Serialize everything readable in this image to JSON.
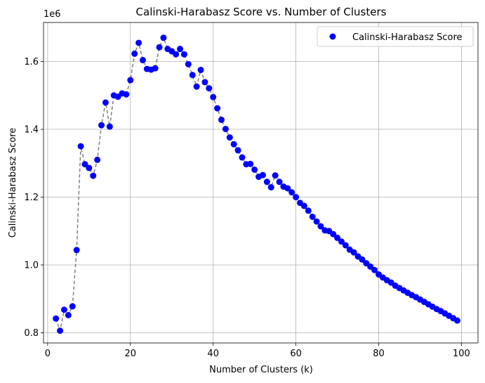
{
  "chart_data": {
    "type": "scatter",
    "title": "Calinski-Harabasz Score vs. Number of Clusters",
    "xlabel": "Number of Clusters (k)",
    "ylabel": "Calinski-Harabasz Score",
    "y_offset_label": "1e6",
    "xlim": [
      -1,
      104
    ],
    "ylim": [
      0.77,
      1.715
    ],
    "xticks": [
      0,
      20,
      40,
      60,
      80,
      100
    ],
    "yticks": [
      0.8,
      1.0,
      1.2,
      1.4,
      1.6
    ],
    "ytick_labels": [
      "0.8",
      "1.0",
      "1.2",
      "1.4",
      "1.6"
    ],
    "grid": true,
    "legend": {
      "position": "top-right",
      "entries": [
        "Calinski-Harabasz Score"
      ]
    },
    "colors": {
      "points": "#0000ff",
      "line": "#808080"
    },
    "series": [
      {
        "name": "Calinski-Harabasz Score",
        "x": [
          2,
          3,
          4,
          5,
          6,
          7,
          8,
          9,
          10,
          11,
          12,
          13,
          14,
          15,
          16,
          17,
          18,
          19,
          20,
          21,
          22,
          23,
          24,
          25,
          26,
          27,
          28,
          29,
          30,
          31,
          32,
          33,
          34,
          35,
          36,
          37,
          38,
          39,
          40,
          41,
          42,
          43,
          44,
          45,
          46,
          47,
          48,
          49,
          50,
          51,
          52,
          53,
          54,
          55,
          56,
          57,
          58,
          59,
          60,
          61,
          62,
          63,
          64,
          65,
          66,
          67,
          68,
          69,
          70,
          71,
          72,
          73,
          74,
          75,
          76,
          77,
          78,
          79,
          80,
          81,
          82,
          83,
          84,
          85,
          86,
          87,
          88,
          89,
          90,
          91,
          92,
          93,
          94,
          95,
          96,
          97,
          98,
          99
        ],
        "y": [
          0.842,
          0.806,
          0.868,
          0.852,
          0.878,
          1.044,
          1.35,
          1.297,
          1.286,
          1.263,
          1.31,
          1.412,
          1.479,
          1.408,
          1.5,
          1.496,
          1.506,
          1.503,
          1.545,
          1.623,
          1.655,
          1.604,
          1.578,
          1.576,
          1.58,
          1.642,
          1.67,
          1.637,
          1.63,
          1.621,
          1.637,
          1.621,
          1.592,
          1.56,
          1.526,
          1.575,
          1.539,
          1.521,
          1.495,
          1.462,
          1.428,
          1.401,
          1.376,
          1.356,
          1.338,
          1.317,
          1.297,
          1.298,
          1.281,
          1.26,
          1.265,
          1.245,
          1.229,
          1.264,
          1.245,
          1.231,
          1.226,
          1.214,
          1.2,
          1.183,
          1.174,
          1.16,
          1.142,
          1.128,
          1.114,
          1.102,
          1.1,
          1.091,
          1.08,
          1.069,
          1.058,
          1.045,
          1.037,
          1.025,
          1.016,
          1.005,
          0.995,
          0.985,
          0.972,
          0.963,
          0.955,
          0.948,
          0.939,
          0.932,
          0.925,
          0.918,
          0.911,
          0.905,
          0.898,
          0.891,
          0.884,
          0.877,
          0.87,
          0.864,
          0.857,
          0.85,
          0.843,
          0.836
        ]
      }
    ]
  }
}
